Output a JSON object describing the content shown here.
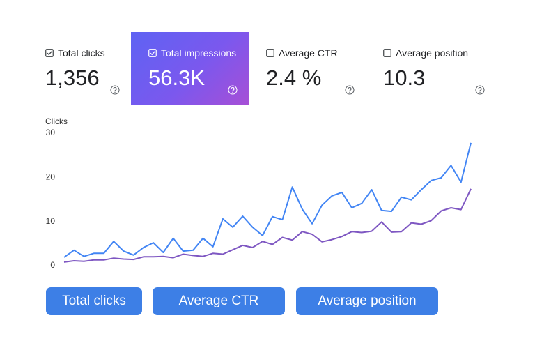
{
  "cards": [
    {
      "label": "Total clicks",
      "value": "1,356",
      "checked": true,
      "selected": false
    },
    {
      "label": "Total impressions",
      "value": "56.3K",
      "checked": true,
      "selected": true
    },
    {
      "label": "Average CTR",
      "value": "2.4 %",
      "checked": false,
      "selected": false
    },
    {
      "label": "Average position",
      "value": "10.3",
      "checked": false,
      "selected": false
    }
  ],
  "chart_data": {
    "type": "line",
    "ylabel": "Clicks",
    "ylim": [
      0,
      30
    ],
    "yticks": [
      0,
      10,
      20,
      30
    ],
    "series": [
      {
        "color": "#4285f4",
        "values": [
          1.9,
          3.5,
          2.1,
          2.8,
          2.8,
          5.5,
          3.3,
          2.4,
          4.1,
          5.2,
          3.0,
          6.2,
          3.3,
          3.5,
          6.2,
          4.3,
          10.6,
          8.7,
          11.2,
          8.7,
          6.8,
          11.1,
          10.4,
          17.8,
          12.8,
          9.5,
          13.7,
          15.8,
          16.6,
          13.1,
          14.1,
          17.2,
          12.5,
          12.3,
          15.5,
          14.9,
          17.2,
          19.3,
          19.9,
          22.7,
          18.9,
          27.8
        ]
      },
      {
        "color": "#7e57c2",
        "values": [
          0.8,
          1.1,
          1.0,
          1.3,
          1.3,
          1.7,
          1.5,
          1.4,
          2.0,
          2.0,
          2.1,
          1.8,
          2.6,
          2.3,
          2.1,
          2.8,
          2.6,
          3.6,
          4.6,
          4.1,
          5.5,
          4.8,
          6.4,
          5.8,
          7.7,
          7.1,
          5.4,
          5.9,
          6.6,
          7.7,
          7.5,
          7.8,
          9.9,
          7.6,
          7.7,
          9.7,
          9.4,
          10.2,
          12.4,
          13.1,
          12.7,
          17.4
        ]
      }
    ]
  },
  "buttons": [
    "Total clicks",
    "Average CTR",
    "Average position"
  ]
}
